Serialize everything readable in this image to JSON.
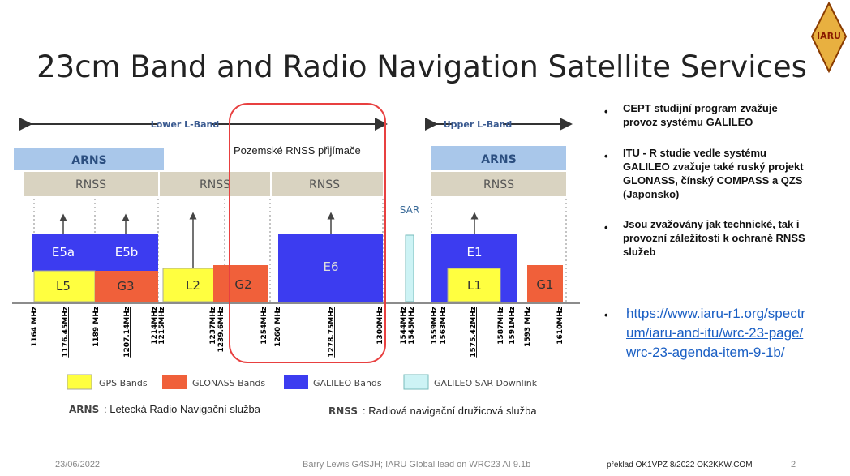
{
  "title": "23cm Band and Radio Navigation Satellite Services",
  "logo": "IARU",
  "diagram": {
    "lower_band": "Lower L-Band",
    "upper_band": "Upper L-Band",
    "arns_left": "ARNS",
    "arns_right": "ARNS",
    "rnss": [
      "RNSS",
      "RNSS",
      "RNSS",
      "RNSS"
    ],
    "highlight": "Pozemské RNSS přijímače",
    "sar": "SAR",
    "signals": {
      "e5a": "E5a",
      "e5b": "E5b",
      "l5": "L5",
      "g3": "G3",
      "l2": "L2",
      "g2": "G2",
      "e6": "E6",
      "e1": "E1",
      "l1": "L1",
      "g1": "G1"
    },
    "frequencies": [
      "1164 MHz",
      "1176.45MHz",
      "1189 MHz",
      "1207.14MHz",
      "1214MHz",
      "1215MHz",
      "1237MHz",
      "1239.6MHz",
      "1254MHz",
      "1260 MHz",
      "1278.75MHz",
      "1300MHz",
      "1544MHz",
      "1545MHz",
      "1559MHz",
      "1563MHz",
      "1575.42MHz",
      "1587MHz",
      "1591MHz",
      "1593 MHz",
      "1610MHz"
    ],
    "legend": [
      "GPS Bands",
      "GLONASS Bands",
      "GALILEO Bands",
      "GALILEO SAR Downlink"
    ],
    "definitions": [
      {
        "abbr": "ARNS",
        "text": ": Letecká Radio Navigační služba"
      },
      {
        "abbr": "RNSS",
        "text": ":  Radiová navigační družicová služba"
      }
    ]
  },
  "bullets": [
    "CEPT studijní program zvažuje provoz systému GALILEO",
    "ITU - R studie vedle systému GALILEO zvažuje také ruský projekt GLONASS, čínský COMPASS  a QZS  (Japonsko)",
    "Jsou zvažovány jak technické, tak i provozní záležitosti k ochraně RNSS služeb"
  ],
  "link": "https://www.iaru-r1.org/spectrum/iaru-and-itu/wrc-23-page/wrc-23-agenda-item-9-1b/",
  "footer": {
    "date": "23/06/2022",
    "author": "Barry Lewis G4SJH; IARU Global lead on WRC23 AI 9.1b",
    "translation": "překlad OK1VPZ 8/2022  OK2KKW.COM",
    "page": "2"
  }
}
